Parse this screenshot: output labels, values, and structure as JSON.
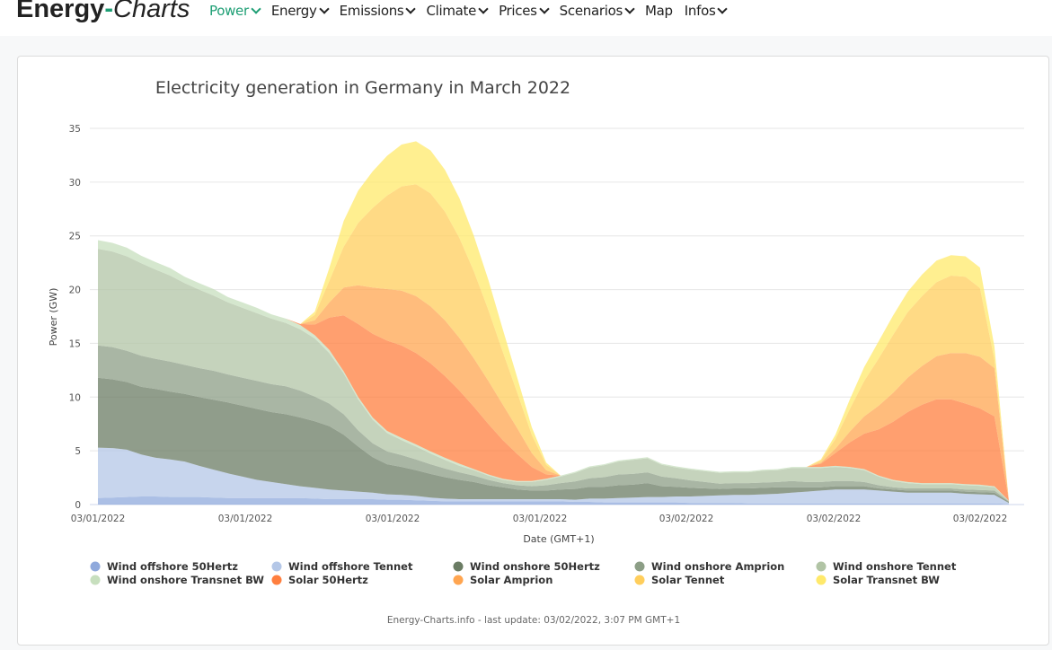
{
  "header": {
    "logo_main": "Energy",
    "logo_dash": "-",
    "logo_italic": "Charts",
    "nav": [
      {
        "label": "Power",
        "dropdown": true,
        "active": true
      },
      {
        "label": "Energy",
        "dropdown": true,
        "active": false
      },
      {
        "label": "Emissions",
        "dropdown": true,
        "active": false
      },
      {
        "label": "Climate",
        "dropdown": true,
        "active": false
      },
      {
        "label": "Prices",
        "dropdown": true,
        "active": false
      },
      {
        "label": "Scenarios",
        "dropdown": true,
        "active": false
      },
      {
        "label": "Map",
        "dropdown": false,
        "active": false
      },
      {
        "label": "Infos",
        "dropdown": true,
        "active": false
      }
    ],
    "accent_color": "#1d9e74"
  },
  "chart_data": {
    "type": "area",
    "stacked": true,
    "title": "Electricity generation in Germany in March 2022",
    "xlabel": "Date (GMT+1)",
    "ylabel": "Power (GW)",
    "ylim": [
      0,
      35
    ],
    "yticks": [
      0,
      5,
      10,
      15,
      20,
      25,
      30,
      35
    ],
    "xticks": [
      "03/01/2022",
      "03/01/2022",
      "03/01/2022",
      "03/01/2022",
      "03/02/2022",
      "03/02/2022",
      "03/02/2022"
    ],
    "grid": true,
    "legend_position": "bottom",
    "credit": "Energy-Charts.info - last update: 03/02/2022, 3:07 PM GMT+1",
    "x_note": "64 evenly spaced samples spanning the plotted time range (ticks at samples 0, ~10, ~20, ~31, ~41, ~51, ~61)",
    "series": [
      {
        "name": "Wind offshore 50Hertz",
        "color": "#8fa9dc",
        "values": [
          0.6,
          0.65,
          0.7,
          0.75,
          0.75,
          0.7,
          0.7,
          0.7,
          0.65,
          0.6,
          0.6,
          0.6,
          0.6,
          0.6,
          0.6,
          0.55,
          0.5,
          0.5,
          0.5,
          0.5,
          0.45,
          0.45,
          0.4,
          0.35,
          0.3,
          0.3,
          0.3,
          0.3,
          0.3,
          0.3,
          0.3,
          0.3,
          0.3,
          0.25,
          0.25,
          0.2,
          0.2,
          0.2,
          0.2,
          0.2,
          0.2,
          0.15,
          0.15,
          0.15,
          0.15,
          0.1,
          0.1,
          0.1,
          0.1,
          0.1,
          0.1,
          0.1,
          0.1,
          0.1,
          0.1,
          0.1,
          0.1,
          0.1,
          0.1,
          0.1,
          0.1,
          0.1,
          0.1,
          0.05
        ]
      },
      {
        "name": "Wind offshore Tennet",
        "color": "#b4c7e7",
        "values": [
          4.7,
          4.6,
          4.4,
          3.9,
          3.6,
          3.5,
          3.3,
          2.9,
          2.6,
          2.3,
          2.0,
          1.7,
          1.5,
          1.3,
          1.1,
          1.0,
          0.9,
          0.8,
          0.7,
          0.6,
          0.5,
          0.45,
          0.4,
          0.3,
          0.25,
          0.2,
          0.2,
          0.2,
          0.2,
          0.2,
          0.2,
          0.2,
          0.2,
          0.2,
          0.3,
          0.35,
          0.4,
          0.45,
          0.5,
          0.5,
          0.55,
          0.6,
          0.65,
          0.7,
          0.75,
          0.8,
          0.85,
          0.9,
          1.0,
          1.1,
          1.2,
          1.3,
          1.3,
          1.3,
          1.2,
          1.1,
          1.0,
          1.0,
          1.0,
          1.0,
          0.9,
          0.85,
          0.8,
          0.1
        ]
      },
      {
        "name": "Wind onshore 50Hertz",
        "color": "#6b7c64",
        "values": [
          6.5,
          6.4,
          6.3,
          6.3,
          6.4,
          6.3,
          6.3,
          6.4,
          6.5,
          6.6,
          6.6,
          6.6,
          6.5,
          6.5,
          6.4,
          6.2,
          5.9,
          5.2,
          4.2,
          3.3,
          2.8,
          2.6,
          2.4,
          2.2,
          2.0,
          1.8,
          1.6,
          1.3,
          1.1,
          0.9,
          0.8,
          0.8,
          0.9,
          1.0,
          1.1,
          1.1,
          1.2,
          1.2,
          1.3,
          1.0,
          0.9,
          0.8,
          0.7,
          0.6,
          0.6,
          0.6,
          0.6,
          0.6,
          0.5,
          0.4,
          0.3,
          0.3,
          0.3,
          0.3,
          0.2,
          0.2,
          0.2,
          0.2,
          0.2,
          0.2,
          0.2,
          0.2,
          0.2,
          0.1
        ]
      },
      {
        "name": "Wind onshore Amprion",
        "color": "#8c9e86",
        "values": [
          3.0,
          3.0,
          2.9,
          2.9,
          2.8,
          2.8,
          2.7,
          2.7,
          2.7,
          2.6,
          2.6,
          2.6,
          2.6,
          2.6,
          2.5,
          2.3,
          2.1,
          1.9,
          1.5,
          1.3,
          1.2,
          1.1,
          1.0,
          0.9,
          0.8,
          0.7,
          0.6,
          0.5,
          0.4,
          0.4,
          0.4,
          0.5,
          0.6,
          0.7,
          0.8,
          0.9,
          1.0,
          1.0,
          1.0,
          0.9,
          0.8,
          0.7,
          0.6,
          0.5,
          0.5,
          0.5,
          0.5,
          0.5,
          0.6,
          0.5,
          0.5,
          0.5,
          0.5,
          0.4,
          0.3,
          0.2,
          0.2,
          0.2,
          0.2,
          0.2,
          0.2,
          0.2,
          0.2,
          0.05
        ]
      },
      {
        "name": "Wind onshore Tennet",
        "color": "#b1c4a5",
        "values": [
          9.0,
          8.9,
          8.8,
          8.6,
          8.3,
          8.0,
          7.6,
          7.3,
          7.0,
          6.7,
          6.5,
          6.3,
          6.1,
          5.9,
          5.7,
          5.4,
          4.7,
          3.8,
          2.9,
          2.2,
          1.7,
          1.4,
          1.2,
          1.0,
          0.8,
          0.6,
          0.5,
          0.4,
          0.3,
          0.3,
          0.4,
          0.5,
          0.6,
          0.8,
          1.0,
          1.1,
          1.2,
          1.3,
          1.3,
          1.1,
          1.0,
          1.0,
          1.0,
          1.0,
          1.0,
          1.0,
          1.1,
          1.1,
          1.2,
          1.3,
          1.3,
          1.3,
          1.2,
          1.1,
          0.8,
          0.6,
          0.5,
          0.4,
          0.4,
          0.4,
          0.4,
          0.4,
          0.3,
          0.05
        ]
      },
      {
        "name": "Wind onshore Transnet BW",
        "color": "#c7dfbe",
        "values": [
          0.8,
          0.8,
          0.8,
          0.7,
          0.7,
          0.7,
          0.6,
          0.6,
          0.6,
          0.5,
          0.5,
          0.5,
          0.4,
          0.4,
          0.4,
          0.3,
          0.3,
          0.2,
          0.2,
          0.2,
          0.2,
          0.2,
          0.2,
          0.2,
          0.2,
          0.2,
          0.1,
          0.1,
          0.1,
          0.1,
          0.1,
          0.1,
          0.1,
          0.1,
          0.1,
          0.1,
          0.1,
          0.1,
          0.1,
          0.1,
          0.1,
          0.1,
          0.1,
          0.1,
          0.1,
          0.1,
          0.1,
          0.1,
          0.1,
          0.1,
          0.1,
          0.1,
          0.1,
          0.1,
          0.1,
          0.1,
          0.1,
          0.1,
          0.1,
          0.1,
          0.1,
          0.1,
          0.1,
          0.0
        ]
      },
      {
        "name": "Solar 50Hertz",
        "color": "#ff7f3f",
        "values": [
          0,
          0,
          0,
          0,
          0,
          0,
          0,
          0,
          0,
          0,
          0,
          0,
          0,
          0,
          0.1,
          1.0,
          3.0,
          5.2,
          6.8,
          7.8,
          8.4,
          8.6,
          8.5,
          8.2,
          7.6,
          6.8,
          5.8,
          4.7,
          3.6,
          2.5,
          1.3,
          0.4,
          0,
          0,
          0,
          0,
          0,
          0,
          0,
          0,
          0,
          0,
          0,
          0,
          0,
          0,
          0,
          0,
          0,
          0,
          0.3,
          1.2,
          2.3,
          3.3,
          4.3,
          5.4,
          6.5,
          7.3,
          7.8,
          7.8,
          7.5,
          7.1,
          6.5,
          0
        ]
      },
      {
        "name": "Solar Amprion",
        "color": "#ffa550",
        "values": [
          0,
          0,
          0,
          0,
          0,
          0,
          0,
          0,
          0,
          0,
          0,
          0,
          0,
          0,
          0,
          0.4,
          1.4,
          2.6,
          3.6,
          4.3,
          4.8,
          5.1,
          5.3,
          5.3,
          5.2,
          4.9,
          4.5,
          4.0,
          3.3,
          2.4,
          1.3,
          0.4,
          0,
          0,
          0,
          0,
          0,
          0,
          0,
          0,
          0,
          0,
          0,
          0,
          0,
          0,
          0,
          0,
          0,
          0,
          0.1,
          0.4,
          1.0,
          1.6,
          2.2,
          2.7,
          3.2,
          3.6,
          4.0,
          4.3,
          4.7,
          4.8,
          4.5,
          0
        ]
      },
      {
        "name": "Solar Tennet",
        "color": "#ffce5c",
        "values": [
          0,
          0,
          0,
          0,
          0,
          0,
          0,
          0,
          0,
          0,
          0,
          0,
          0,
          0,
          0,
          0.5,
          2.0,
          3.8,
          5.8,
          7.4,
          8.7,
          9.7,
          10.4,
          10.5,
          10.1,
          9.3,
          8.1,
          6.6,
          4.9,
          3.3,
          1.7,
          0.5,
          0,
          0,
          0,
          0,
          0,
          0,
          0,
          0,
          0,
          0,
          0,
          0,
          0,
          0,
          0,
          0,
          0,
          0,
          0.2,
          0.9,
          2.1,
          3.3,
          4.4,
          5.4,
          6.1,
          6.5,
          6.9,
          7.2,
          7.1,
          6.4,
          0.8,
          0
        ]
      },
      {
        "name": "Solar Transnet BW",
        "color": "#ffe96b",
        "values": [
          0,
          0,
          0,
          0,
          0,
          0,
          0,
          0,
          0,
          0,
          0,
          0,
          0,
          0,
          0,
          0.3,
          1.2,
          2.4,
          3.0,
          3.4,
          3.7,
          3.9,
          4.0,
          4.0,
          3.9,
          3.7,
          3.3,
          2.8,
          2.1,
          1.4,
          0.7,
          0.2,
          0,
          0,
          0,
          0,
          0,
          0,
          0,
          0,
          0,
          0,
          0,
          0,
          0,
          0,
          0,
          0,
          0,
          0,
          0.1,
          0.4,
          0.9,
          1.3,
          1.6,
          1.8,
          1.9,
          2.0,
          2.0,
          1.9,
          1.9,
          1.9,
          1.2,
          0
        ]
      }
    ]
  }
}
